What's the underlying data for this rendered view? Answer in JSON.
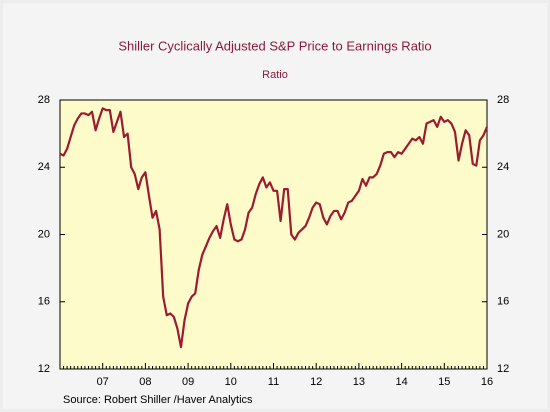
{
  "chart_data": {
    "type": "line",
    "title": "Shiller Cyclically Adjusted S&P Price to Earnings Ratio",
    "subtitle": "Ratio",
    "source": "Source:  Robert Shiller /Haver Analytics",
    "categories": [
      null,
      null,
      null,
      null,
      null,
      null,
      null,
      null,
      null,
      null,
      null,
      null,
      "07",
      null,
      null,
      null,
      null,
      null,
      null,
      null,
      null,
      null,
      null,
      null,
      "08",
      null,
      null,
      null,
      null,
      null,
      null,
      null,
      null,
      null,
      null,
      null,
      "09",
      null,
      null,
      null,
      null,
      null,
      null,
      null,
      null,
      null,
      null,
      null,
      "10",
      null,
      null,
      null,
      null,
      null,
      null,
      null,
      null,
      null,
      null,
      null,
      "11",
      null,
      null,
      null,
      null,
      null,
      null,
      null,
      null,
      null,
      null,
      null,
      "12",
      null,
      null,
      null,
      null,
      null,
      null,
      null,
      null,
      null,
      null,
      null,
      "13",
      null,
      null,
      null,
      null,
      null,
      null,
      null,
      null,
      null,
      null,
      null,
      "14",
      null,
      null,
      null,
      null,
      null,
      null,
      null,
      null,
      null,
      null,
      null,
      "15",
      null,
      null,
      null,
      null,
      null,
      null,
      null,
      null,
      null,
      null,
      null,
      "16"
    ],
    "series": [
      {
        "name": "Ratio",
        "color": "#9b1b30",
        "values": [
          24.8,
          24.7,
          25.1,
          25.8,
          26.5,
          26.9,
          27.2,
          27.2,
          27.1,
          27.3,
          26.2,
          26.9,
          27.5,
          27.4,
          27.4,
          26.1,
          26.7,
          27.3,
          25.8,
          26.0,
          24.0,
          23.6,
          22.7,
          23.4,
          23.7,
          22.3,
          21.0,
          21.4,
          20.3,
          16.3,
          15.2,
          15.3,
          15.1,
          14.4,
          13.3,
          14.9,
          15.9,
          16.3,
          16.5,
          17.9,
          18.8,
          19.3,
          19.8,
          20.2,
          20.5,
          19.8,
          20.9,
          21.8,
          20.6,
          19.7,
          19.6,
          19.7,
          20.3,
          21.3,
          21.6,
          22.4,
          23.0,
          23.4,
          22.8,
          23.1,
          22.6,
          22.6,
          20.8,
          22.7,
          22.7,
          20.0,
          19.7,
          20.1,
          20.3,
          20.5,
          21.0,
          21.6,
          21.9,
          21.8,
          21.0,
          20.6,
          21.1,
          21.4,
          21.4,
          20.9,
          21.3,
          21.9,
          22.0,
          22.3,
          22.6,
          23.3,
          22.9,
          23.4,
          23.4,
          23.6,
          24.1,
          24.8,
          24.9,
          24.9,
          24.6,
          24.9,
          24.8,
          25.1,
          25.4,
          25.7,
          25.6,
          25.8,
          25.4,
          26.6,
          26.7,
          26.8,
          26.4,
          27.0,
          26.7,
          26.8,
          26.6,
          26.1,
          24.4,
          25.4,
          26.2,
          25.9,
          24.2,
          24.1,
          25.6,
          25.9,
          26.4
        ]
      }
    ],
    "ylim": [
      12,
      28
    ],
    "yticks": [
      12,
      16,
      20,
      24,
      28
    ],
    "y2lim": [
      12,
      28
    ],
    "y2ticks": [
      12,
      16,
      20,
      24,
      28
    ],
    "plot_background": "#fdfbc9",
    "title_color": "#8b1a3a"
  }
}
